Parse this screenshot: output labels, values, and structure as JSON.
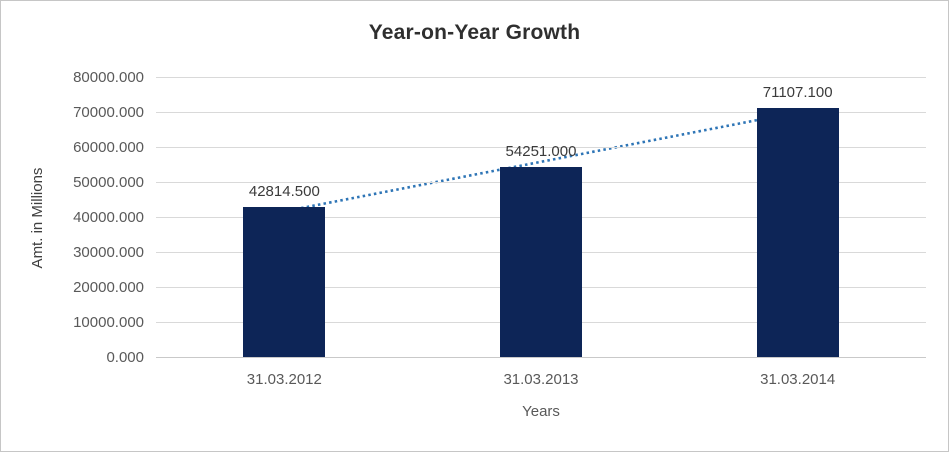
{
  "chart_data": {
    "type": "bar",
    "title": "Year-on-Year Growth",
    "xlabel": "Years",
    "ylabel": "Amt. in Millions",
    "categories": [
      "31.03.2012",
      "31.03.2013",
      "31.03.2014"
    ],
    "values": [
      42814.5,
      54251.0,
      71107.1
    ],
    "data_labels": [
      "42814.500",
      "54251.000",
      "71107.100"
    ],
    "ylim": [
      0,
      80000
    ],
    "ytick_step": 10000,
    "ytick_labels": [
      "0.000",
      "10000.000",
      "20000.000",
      "30000.000",
      "40000.000",
      "50000.000",
      "60000.000",
      "70000.000",
      "80000.000"
    ],
    "grid": true,
    "legend": "none",
    "trendline": {
      "type": "linear",
      "style": "dotted",
      "color": "#2e75b6"
    },
    "colors": {
      "bar": "#0d2557",
      "grid": "#d9d9d9",
      "axis_line": "#c9c9c9",
      "title_text": "#2f2f2f",
      "tick_text": "#595959",
      "data_label_text": "#3b3b3b"
    }
  }
}
